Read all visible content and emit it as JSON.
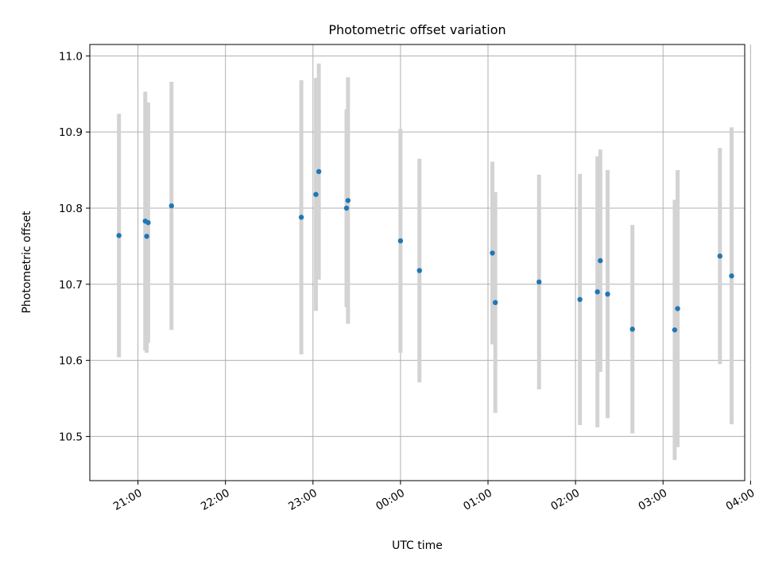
{
  "chart_data": {
    "type": "scatter",
    "title": "Photometric offset variation",
    "xlabel": "UTC time",
    "ylabel": "Photometric offset",
    "grid": true,
    "x_tick_labels": [
      "21:00",
      "22:00",
      "23:00",
      "00:00",
      "01:00",
      "02:00",
      "03:00",
      "04:00"
    ],
    "x_tick_minutes": [
      0,
      60,
      120,
      180,
      240,
      300,
      360,
      420
    ],
    "xlim_minutes": [
      -33,
      416
    ],
    "y_ticks": [
      "10.5",
      "10.6",
      "10.7",
      "10.8",
      "10.9",
      "11.0"
    ],
    "ylim": [
      10.442,
      11.015
    ],
    "point_color": "#1f77b4",
    "errorbar_color": "#d3d3d3",
    "points": [
      {
        "time": "20:47",
        "y": 10.764,
        "err": 0.16
      },
      {
        "time": "21:05",
        "y": 10.783,
        "err": 0.17
      },
      {
        "time": "21:06",
        "y": 10.763,
        "err": 0.153
      },
      {
        "time": "21:07",
        "y": 10.781,
        "err": 0.158
      },
      {
        "time": "21:23",
        "y": 10.803,
        "err": 0.163
      },
      {
        "time": "22:52",
        "y": 10.788,
        "err": 0.18
      },
      {
        "time": "23:02",
        "y": 10.818,
        "err": 0.153
      },
      {
        "time": "23:04",
        "y": 10.848,
        "err": 0.142
      },
      {
        "time": "23:23",
        "y": 10.8,
        "err": 0.13
      },
      {
        "time": "23:24",
        "y": 10.81,
        "err": 0.162
      },
      {
        "time": "00:00",
        "y": 10.757,
        "err": 0.147
      },
      {
        "time": "00:13",
        "y": 10.718,
        "err": 0.147
      },
      {
        "time": "01:03",
        "y": 10.741,
        "err": 0.12
      },
      {
        "time": "01:05",
        "y": 10.676,
        "err": 0.145
      },
      {
        "time": "01:35",
        "y": 10.703,
        "err": 0.141
      },
      {
        "time": "02:03",
        "y": 10.68,
        "err": 0.165
      },
      {
        "time": "02:15",
        "y": 10.69,
        "err": 0.178
      },
      {
        "time": "02:17",
        "y": 10.731,
        "err": 0.146
      },
      {
        "time": "02:22",
        "y": 10.687,
        "err": 0.163
      },
      {
        "time": "02:39",
        "y": 10.641,
        "err": 0.137
      },
      {
        "time": "03:08",
        "y": 10.64,
        "err": 0.171
      },
      {
        "time": "03:10",
        "y": 10.668,
        "err": 0.182
      },
      {
        "time": "03:39",
        "y": 10.737,
        "err": 0.142
      },
      {
        "time": "03:47",
        "y": 10.711,
        "err": 0.195
      }
    ]
  }
}
